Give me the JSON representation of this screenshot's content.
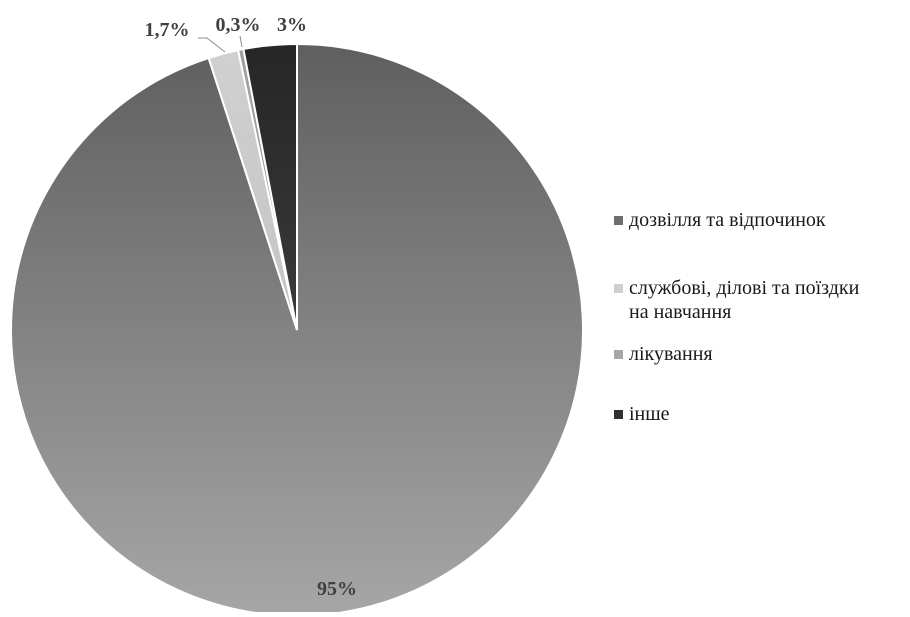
{
  "chart_data": {
    "type": "pie",
    "title": "",
    "start_angle_deg": 0,
    "direction": "clockwise",
    "slices": [
      {
        "label": "дозвілля та відпочинок",
        "value": 95,
        "display": "95%",
        "color_top": "#5f5f5f",
        "color_bottom": "#a6a6a6",
        "swatch": "#6e6e6e"
      },
      {
        "label": "службові, ділові та поїздки\nна навчання",
        "value": 1.7,
        "display": "1,7%",
        "color_top": "#d0d0d0",
        "color_bottom": "#c4c4c4",
        "swatch": "#cfcfcf"
      },
      {
        "label": "лікування",
        "value": 0.3,
        "display": "0,3%",
        "color_top": "#a0a0a0",
        "color_bottom": "#9a9a9a",
        "swatch": "#a6a6a6"
      },
      {
        "label": "інше",
        "value": 3,
        "display": "3%",
        "color_top": "#262626",
        "color_bottom": "#3a3a3a",
        "swatch": "#303030"
      }
    ],
    "legend_position": "right"
  }
}
